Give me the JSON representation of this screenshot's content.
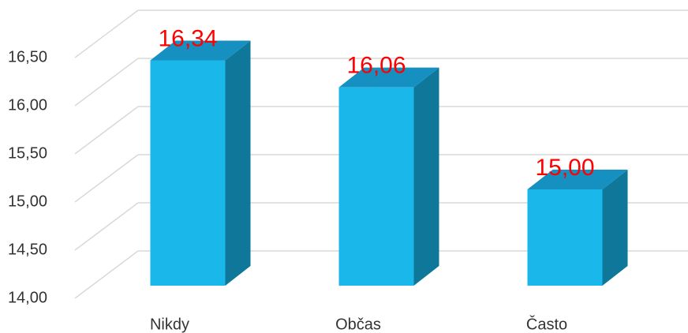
{
  "chart_data": {
    "type": "bar3d",
    "categories": [
      "Nikdy",
      "Občas",
      "Často"
    ],
    "values": [
      16.34,
      16.06,
      15.0
    ],
    "value_labels": [
      "16,34",
      "16,06",
      "15,00"
    ],
    "color": "#1ab7ea",
    "ylim": [
      14,
      16.5
    ],
    "yticks": [
      {
        "value": 14,
        "label": "14,00"
      },
      {
        "value": 14.5,
        "label": "14,50"
      },
      {
        "value": 15,
        "label": "15,00"
      },
      {
        "value": 15.5,
        "label": "15,50"
      },
      {
        "value": 16,
        "label": "16,00"
      },
      {
        "value": 16.5,
        "label": "16,50"
      }
    ],
    "grid": true
  }
}
